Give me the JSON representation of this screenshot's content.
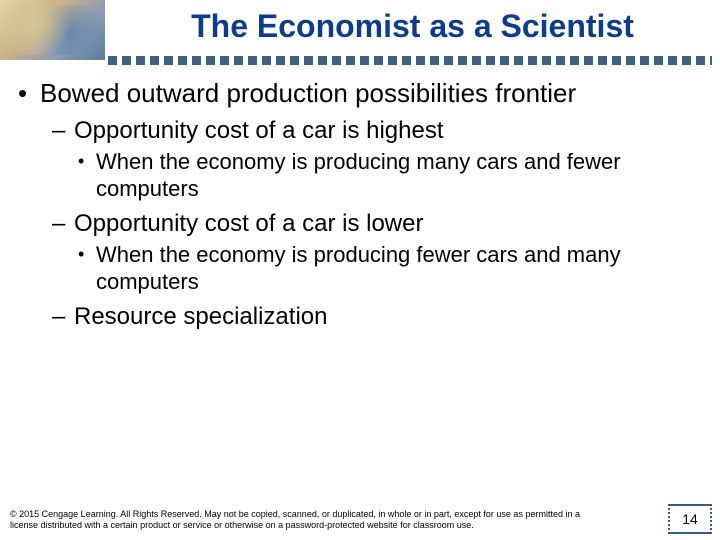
{
  "colors": {
    "title": "#0d3d8a",
    "dot": "#406080",
    "page_box_border": "#3a5a80",
    "text": "#000000",
    "background": "#ffffff"
  },
  "typography": {
    "title_fontsize": 32,
    "l1_fontsize": 26,
    "l2_fontsize": 24,
    "l3_fontsize": 22,
    "copyright_fontsize": 9,
    "page_number_fontsize": 14,
    "font_family": "Arial"
  },
  "title": "The Economist as a Scientist",
  "bullets": {
    "l1_marker": "•",
    "l1_text": "Bowed outward production possibilities frontier",
    "items": [
      {
        "l2_marker": "–",
        "l2_text": "Opportunity cost of a car is highest",
        "sub": {
          "l3_marker": "•",
          "l3_text": "When the economy is producing many cars and fewer computers"
        }
      },
      {
        "l2_marker": "–",
        "l2_text": "Opportunity cost of a car is lower",
        "sub": {
          "l3_marker": "•",
          "l3_text": "When the economy is producing fewer cars and many computers"
        }
      },
      {
        "l2_marker": "–",
        "l2_text": "Resource specialization"
      }
    ]
  },
  "copyright": "© 2015 Cengage Learning. All Rights Reserved. May not be copied, scanned, or duplicated, in whole or in part, except for use as permitted in a license distributed with a certain product or service or otherwise on a password-protected website for classroom use.",
  "page_number": "14"
}
